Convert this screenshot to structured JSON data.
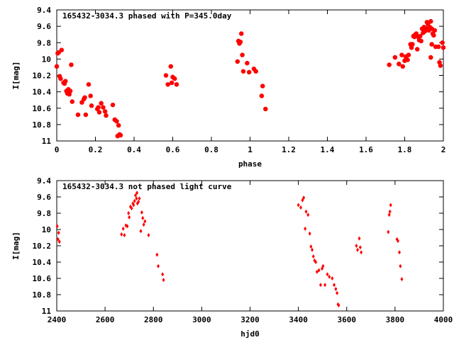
{
  "chart_data": [
    {
      "type": "scatter",
      "title": "165432-3034.3 phased with P=345.0day",
      "xlabel": "phase",
      "ylabel": "I[mag]",
      "xlim": [
        0,
        2
      ],
      "ylim": [
        9.4,
        11
      ],
      "y_inverted": true,
      "xticks": [
        "0",
        "0.2",
        "0.4",
        "0.6",
        "0.8",
        "1",
        "1.2",
        "1.4",
        "1.6",
        "1.8",
        "2"
      ],
      "xtick_values": [
        0,
        0.2,
        0.4,
        0.6,
        0.8,
        1.0,
        1.2,
        1.4,
        1.6,
        1.8,
        2.0
      ],
      "yticks": [
        "9.4",
        "9.6",
        "9.8",
        "10",
        "10.2",
        "10.4",
        "10.6",
        "10.8",
        "11"
      ],
      "ytick_values": [
        9.4,
        9.6,
        9.8,
        10.0,
        10.2,
        10.4,
        10.6,
        10.8,
        11.0
      ],
      "marker_color": "#ff0000",
      "marker": "filled-octagon",
      "series": [
        {
          "points": [
            [
              0.0,
              10.09
            ],
            [
              0.005,
              9.93
            ],
            [
              0.01,
              9.92
            ],
            [
              0.015,
              10.21
            ],
            [
              0.02,
              10.24
            ],
            [
              0.025,
              9.89
            ],
            [
              0.035,
              10.29
            ],
            [
              0.04,
              10.3
            ],
            [
              0.045,
              10.27
            ],
            [
              0.05,
              10.39
            ],
            [
              0.055,
              10.42
            ],
            [
              0.06,
              10.37
            ],
            [
              0.065,
              10.43
            ],
            [
              0.07,
              10.39
            ],
            [
              0.075,
              10.07
            ],
            [
              0.08,
              10.52
            ],
            [
              0.11,
              10.68
            ],
            [
              0.13,
              10.53
            ],
            [
              0.14,
              10.49
            ],
            [
              0.145,
              10.47
            ],
            [
              0.15,
              10.68
            ],
            [
              0.165,
              10.31
            ],
            [
              0.175,
              10.45
            ],
            [
              0.18,
              10.57
            ],
            [
              0.21,
              10.61
            ],
            [
              0.215,
              10.59
            ],
            [
              0.22,
              10.65
            ],
            [
              0.23,
              10.54
            ],
            [
              0.24,
              10.59
            ],
            [
              0.25,
              10.64
            ],
            [
              0.255,
              10.69
            ],
            [
              0.29,
              10.56
            ],
            [
              0.3,
              10.74
            ],
            [
              0.31,
              10.76
            ],
            [
              0.315,
              10.94
            ],
            [
              0.32,
              10.81
            ],
            [
              0.325,
              10.92
            ],
            [
              0.33,
              10.93
            ],
            [
              0.565,
              10.2
            ],
            [
              0.575,
              10.31
            ],
            [
              0.59,
              10.09
            ],
            [
              0.595,
              10.29
            ],
            [
              0.6,
              10.22
            ],
            [
              0.61,
              10.24
            ],
            [
              0.62,
              10.31
            ],
            [
              0.935,
              10.03
            ],
            [
              0.94,
              9.78
            ],
            [
              0.945,
              9.81
            ],
            [
              0.95,
              9.79
            ],
            [
              0.955,
              9.69
            ],
            [
              0.96,
              9.95
            ],
            [
              0.965,
              10.15
            ],
            [
              0.985,
              10.05
            ],
            [
              0.995,
              10.16
            ],
            [
              1.02,
              10.12
            ],
            [
              1.03,
              10.15
            ],
            [
              1.06,
              10.45
            ],
            [
              1.065,
              10.33
            ],
            [
              1.08,
              10.61
            ],
            [
              1.72,
              10.07
            ],
            [
              1.75,
              9.98
            ],
            [
              1.77,
              10.06
            ],
            [
              1.785,
              9.95
            ],
            [
              1.79,
              10.09
            ],
            [
              1.8,
              10.02
            ],
            [
              1.805,
              9.97
            ],
            [
              1.815,
              10.01
            ],
            [
              1.82,
              9.95
            ],
            [
              1.83,
              9.82
            ],
            [
              1.835,
              9.86
            ],
            [
              1.84,
              9.82
            ],
            [
              1.845,
              9.72
            ],
            [
              1.85,
              9.73
            ],
            [
              1.855,
              9.7
            ],
            [
              1.86,
              9.69
            ],
            [
              1.865,
              9.88
            ],
            [
              1.87,
              9.73
            ],
            [
              1.875,
              9.77
            ],
            [
              1.88,
              9.72
            ],
            [
              1.885,
              9.78
            ],
            [
              1.89,
              9.63
            ],
            [
              1.895,
              9.68
            ],
            [
              1.9,
              9.61
            ],
            [
              1.905,
              9.66
            ],
            [
              1.91,
              9.62
            ],
            [
              1.915,
              9.55
            ],
            [
              1.92,
              9.57
            ],
            [
              1.925,
              9.65
            ],
            [
              1.93,
              9.61
            ],
            [
              1.935,
              9.54
            ],
            [
              1.94,
              9.63
            ],
            [
              1.945,
              9.69
            ],
            [
              1.95,
              9.71
            ],
            [
              1.955,
              9.65
            ],
            [
              1.935,
              9.98
            ],
            [
              1.94,
              9.82
            ],
            [
              1.96,
              9.85
            ],
            [
              1.975,
              9.85
            ],
            [
              1.98,
              10.04
            ],
            [
              1.985,
              10.08
            ],
            [
              1.995,
              9.8
            ],
            [
              2.0,
              9.86
            ]
          ]
        }
      ]
    },
    {
      "type": "scatter",
      "title": "165432-3034.3 not phased light curve",
      "xlabel": "hjd0",
      "ylabel": "I[mag]",
      "xlim": [
        2400,
        4000
      ],
      "ylim": [
        9.4,
        11
      ],
      "y_inverted": true,
      "xticks": [
        "2400",
        "2600",
        "2800",
        "3000",
        "3200",
        "3400",
        "3600",
        "3800",
        "4000"
      ],
      "xtick_values": [
        2400,
        2600,
        2800,
        3000,
        3200,
        3400,
        3600,
        3800,
        4000
      ],
      "yticks": [
        "9.4",
        "9.6",
        "9.8",
        "10",
        "10.2",
        "10.4",
        "10.6",
        "10.8",
        "11"
      ],
      "ytick_values": [
        9.4,
        9.6,
        9.8,
        10.0,
        10.2,
        10.4,
        10.6,
        10.8,
        11.0
      ],
      "marker_color": "#ff0000",
      "marker": "small-diamond",
      "series": [
        {
          "points": [
            [
              2402,
              9.96
            ],
            [
              2405,
              10.12
            ],
            [
              2408,
              10.04
            ],
            [
              2411,
              10.15
            ],
            [
              2668,
              10.06
            ],
            [
              2675,
              9.99
            ],
            [
              2680,
              10.07
            ],
            [
              2686,
              9.95
            ],
            [
              2692,
              9.96
            ],
            [
              2697,
              9.8
            ],
            [
              2700,
              9.85
            ],
            [
              2705,
              9.72
            ],
            [
              2710,
              9.74
            ],
            [
              2715,
              9.68
            ],
            [
              2718,
              9.7
            ],
            [
              2722,
              9.65
            ],
            [
              2726,
              9.58
            ],
            [
              2730,
              9.62
            ],
            [
              2732,
              9.55
            ],
            [
              2734,
              9.68
            ],
            [
              2738,
              9.66
            ],
            [
              2742,
              9.62
            ],
            [
              2748,
              10.02
            ],
            [
              2752,
              9.79
            ],
            [
              2756,
              9.86
            ],
            [
              2760,
              9.94
            ],
            [
              2765,
              9.9
            ],
            [
              2780,
              10.07
            ],
            [
              2815,
              10.31
            ],
            [
              2820,
              10.45
            ],
            [
              2838,
              10.55
            ],
            [
              2842,
              10.62
            ],
            [
              3400,
              9.7
            ],
            [
              3410,
              9.73
            ],
            [
              3417,
              9.64
            ],
            [
              3422,
              9.61
            ],
            [
              3428,
              9.99
            ],
            [
              3432,
              9.78
            ],
            [
              3440,
              9.82
            ],
            [
              3447,
              10.05
            ],
            [
              3452,
              10.21
            ],
            [
              3457,
              10.25
            ],
            [
              3462,
              10.33
            ],
            [
              3467,
              10.38
            ],
            [
              3472,
              10.4
            ],
            [
              3477,
              10.52
            ],
            [
              3485,
              10.5
            ],
            [
              3492,
              10.68
            ],
            [
              3498,
              10.48
            ],
            [
              3502,
              10.45
            ],
            [
              3510,
              10.68
            ],
            [
              3520,
              10.55
            ],
            [
              3528,
              10.58
            ],
            [
              3540,
              10.6
            ],
            [
              3548,
              10.68
            ],
            [
              3555,
              10.73
            ],
            [
              3560,
              10.78
            ],
            [
              3564,
              10.92
            ],
            [
              3567,
              10.93
            ],
            [
              3640,
              10.2
            ],
            [
              3645,
              10.25
            ],
            [
              3652,
              10.11
            ],
            [
              3656,
              10.22
            ],
            [
              3660,
              10.28
            ],
            [
              3772,
              10.03
            ],
            [
              3776,
              9.82
            ],
            [
              3779,
              9.78
            ],
            [
              3782,
              9.7
            ],
            [
              3808,
              10.12
            ],
            [
              3812,
              10.14
            ],
            [
              3818,
              10.28
            ],
            [
              3822,
              10.45
            ],
            [
              3828,
              10.61
            ]
          ]
        }
      ]
    }
  ]
}
